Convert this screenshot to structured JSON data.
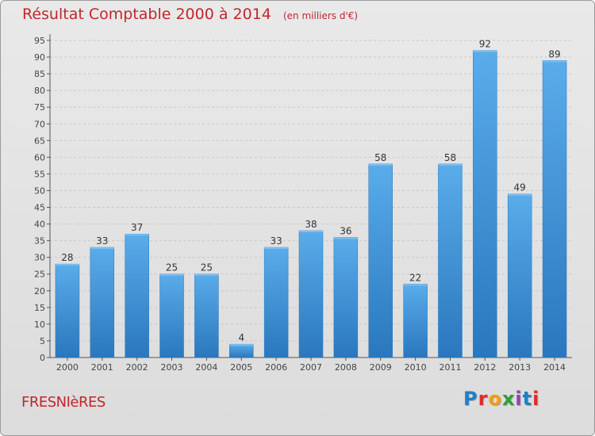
{
  "header": {
    "title": "Résultat Comptable 2000 à 2014",
    "unit_note": "(en milliers d'€)"
  },
  "footer": {
    "place_name": "FRESNIèRES",
    "logo_letters": [
      {
        "ch": "P",
        "color": "#1f7fc7"
      },
      {
        "ch": "r",
        "color": "#e02b2b"
      },
      {
        "ch": "o",
        "color": "#f39c12"
      },
      {
        "ch": "x",
        "color": "#2f9d3a"
      },
      {
        "ch": "i",
        "color": "#8e44ad"
      },
      {
        "ch": "t",
        "color": "#1f7fc7"
      },
      {
        "ch": "i",
        "color": "#e02b2b"
      }
    ]
  },
  "chart_data": {
    "type": "bar",
    "title": "Résultat Comptable 2000 à 2014",
    "subtitle": "(en milliers d'€)",
    "categories": [
      "2000",
      "2001",
      "2002",
      "2003",
      "2004",
      "2005",
      "2006",
      "2007",
      "2008",
      "2009",
      "2010",
      "2011",
      "2012",
      "2013",
      "2014"
    ],
    "values": [
      28,
      33,
      37,
      25,
      25,
      4,
      33,
      38,
      36,
      58,
      22,
      58,
      92,
      49,
      89
    ],
    "ylim": [
      0,
      95
    ],
    "yticks": [
      0,
      5,
      10,
      15,
      20,
      25,
      30,
      35,
      40,
      45,
      50,
      55,
      60,
      65,
      70,
      75,
      80,
      85,
      90,
      95
    ],
    "grid": true,
    "bar_color": "#3b8fd6",
    "bar_color_light": "#5aacea",
    "bar_color_dark": "#2a77bd"
  }
}
